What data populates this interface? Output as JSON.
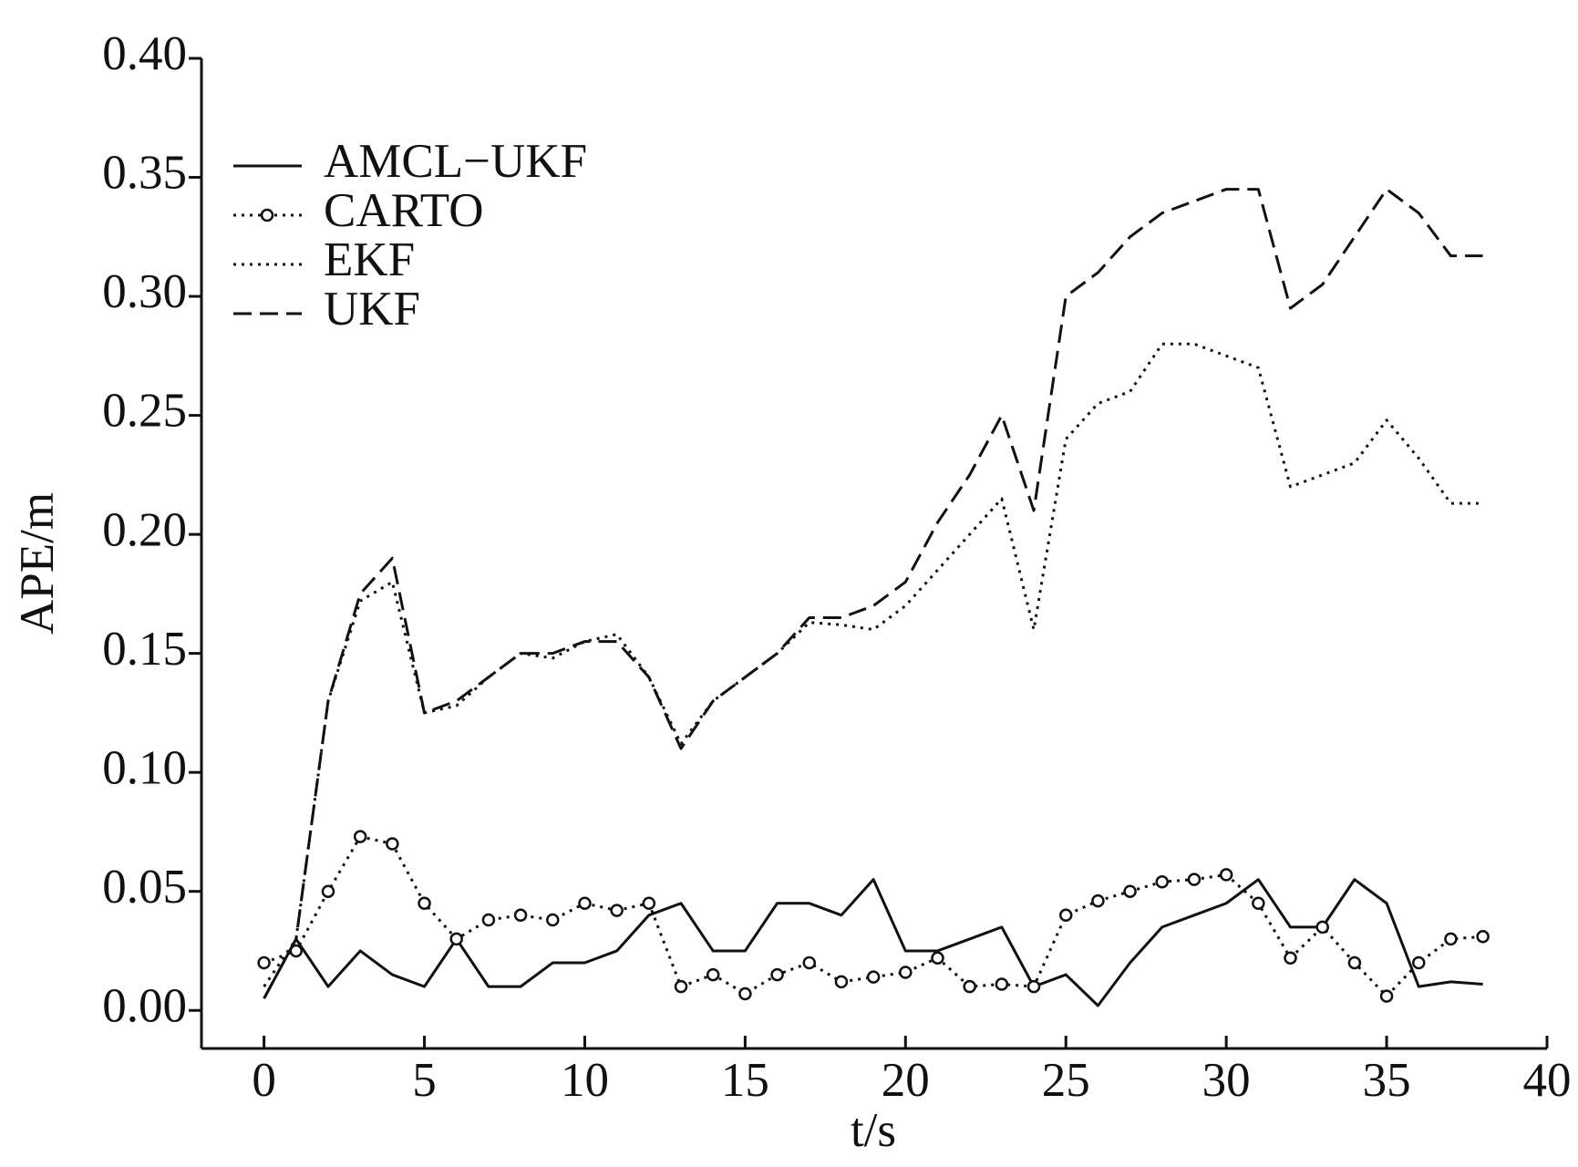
{
  "chart_data": {
    "type": "line",
    "x_label": "t/s",
    "y_label": "APE/m",
    "x": [
      0,
      1,
      2,
      3,
      4,
      5,
      6,
      7,
      8,
      9,
      10,
      11,
      12,
      13,
      14,
      15,
      16,
      17,
      18,
      19,
      20,
      21,
      22,
      23,
      24,
      25,
      26,
      27,
      28,
      29,
      30,
      31,
      32,
      33,
      34,
      35,
      36,
      37,
      38
    ],
    "series": [
      {
        "name": "AMCL−UKF",
        "color": "#111111",
        "style": "solid",
        "values": [
          0.005,
          0.03,
          0.01,
          0.025,
          0.015,
          0.01,
          0.03,
          0.01,
          0.01,
          0.02,
          0.02,
          0.025,
          0.04,
          0.045,
          0.025,
          0.025,
          0.045,
          0.045,
          0.04,
          0.055,
          0.025,
          0.025,
          0.03,
          0.035,
          0.01,
          0.015,
          0.002,
          0.02,
          0.035,
          0.04,
          0.045,
          0.055,
          0.035,
          0.035,
          0.055,
          0.045,
          0.01,
          0.012,
          0.011
        ]
      },
      {
        "name": "CARTO",
        "color": "#111111",
        "style": "dotted-circle",
        "values": [
          0.02,
          0.025,
          0.05,
          0.073,
          0.07,
          0.045,
          0.03,
          0.038,
          0.04,
          0.038,
          0.045,
          0.042,
          0.045,
          0.01,
          0.015,
          0.007,
          0.015,
          0.02,
          0.012,
          0.014,
          0.016,
          0.022,
          0.01,
          0.011,
          0.01,
          0.04,
          0.046,
          0.05,
          0.054,
          0.055,
          0.057,
          0.045,
          0.022,
          0.035,
          0.02,
          0.006,
          0.02,
          0.03,
          0.031
        ]
      },
      {
        "name": "EKF",
        "color": "#111111",
        "style": "dotted",
        "values": [
          0.01,
          0.03,
          0.13,
          0.172,
          0.18,
          0.125,
          0.128,
          0.14,
          0.15,
          0.148,
          0.155,
          0.158,
          0.14,
          0.112,
          0.13,
          0.14,
          0.15,
          0.163,
          0.162,
          0.16,
          0.17,
          0.185,
          0.2,
          0.215,
          0.16,
          0.24,
          0.255,
          0.26,
          0.28,
          0.28,
          0.275,
          0.27,
          0.22,
          0.225,
          0.23,
          0.248,
          0.232,
          0.213,
          0.213
        ]
      },
      {
        "name": "UKF",
        "color": "#111111",
        "style": "dashed",
        "values": [
          0.005,
          0.03,
          0.13,
          0.175,
          0.19,
          0.125,
          0.13,
          0.14,
          0.15,
          0.15,
          0.155,
          0.155,
          0.14,
          0.11,
          0.13,
          0.14,
          0.15,
          0.165,
          0.165,
          0.17,
          0.18,
          0.205,
          0.225,
          0.25,
          0.21,
          0.3,
          0.31,
          0.325,
          0.335,
          0.34,
          0.345,
          0.345,
          0.295,
          0.305,
          0.325,
          0.345,
          0.335,
          0.317,
          0.317
        ]
      }
    ],
    "xlim": [
      -1.95,
      40
    ],
    "ylim": [
      -0.016,
      0.4
    ],
    "xticks": [
      0,
      5,
      10,
      15,
      20,
      25,
      30,
      35,
      40
    ],
    "yticks": [
      {
        "value": 0,
        "label": "0.00"
      },
      {
        "value": 0.05,
        "label": "0.05"
      },
      {
        "value": 0.1,
        "label": "0.10"
      },
      {
        "value": 0.15,
        "label": "0.15"
      },
      {
        "value": 0.2,
        "label": "0.20"
      },
      {
        "value": 0.25,
        "label": "0.25"
      },
      {
        "value": 0.3,
        "label": "0.30"
      },
      {
        "value": 0.35,
        "label": "0.35"
      },
      {
        "value": 0.4,
        "label": "0.40"
      }
    ],
    "legend": "upper left"
  }
}
